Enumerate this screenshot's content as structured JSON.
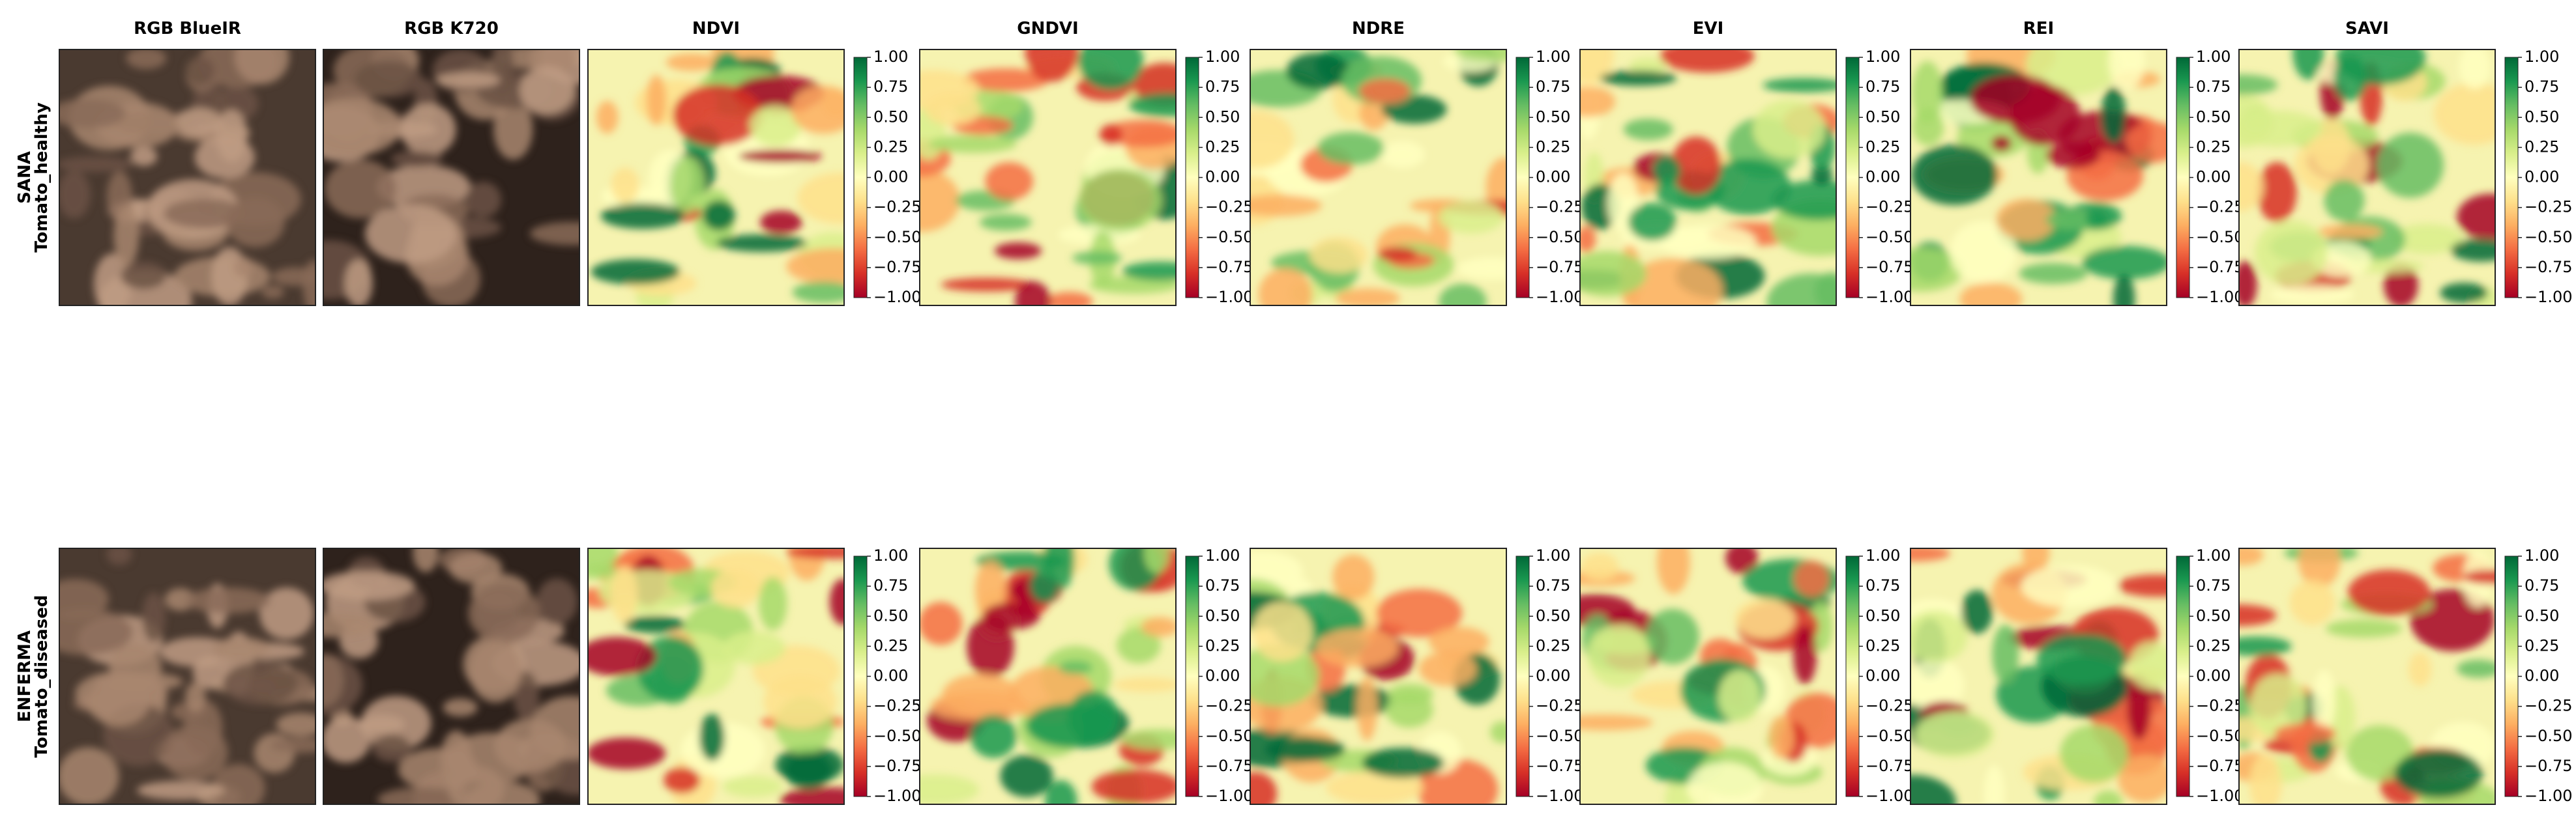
{
  "columns": [
    "RGB BlueIR",
    "RGB K720",
    "NDVI",
    "GNDVI",
    "NDRE",
    "EVI",
    "REI",
    "SAVI"
  ],
  "rows": [
    {
      "label": "SANA",
      "sublabel": "Tomato_healthy"
    },
    {
      "label": "ENFERMA",
      "sublabel": "Tomato_diseased"
    }
  ],
  "colorbar": {
    "lim": [
      -1,
      1
    ],
    "ticks": [
      {
        "value": 1,
        "label": "1.00"
      },
      {
        "value": 0.75,
        "label": "0.75"
      },
      {
        "value": 0.5,
        "label": "0.50"
      },
      {
        "value": 0.25,
        "label": "0.25"
      },
      {
        "value": 0,
        "label": "0.00"
      },
      {
        "value": -0.25,
        "label": "−0.25"
      },
      {
        "value": -0.5,
        "label": "−0.50"
      },
      {
        "value": -0.75,
        "label": "−0.75"
      },
      {
        "value": -1,
        "label": "−1.00"
      }
    ]
  }
}
